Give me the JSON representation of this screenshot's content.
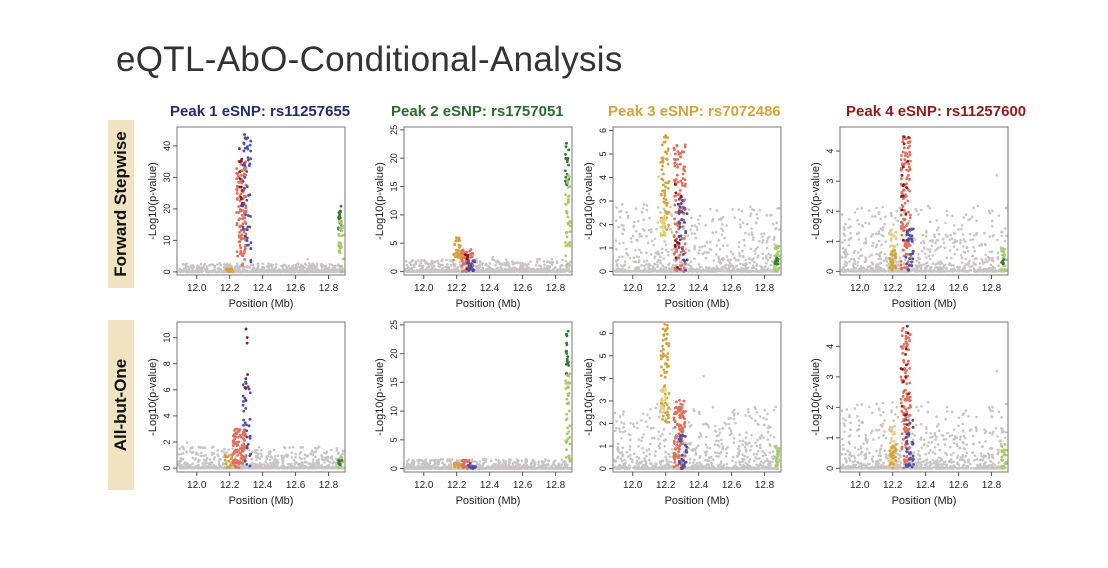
{
  "title": "eQTL-AbO-Conditional-Analysis",
  "row_labels": [
    "Forward Stepwise",
    "All-but-One"
  ],
  "colors": {
    "gray": "#c9c5c5",
    "red": "#e0705e",
    "darkred": "#8e1c1c",
    "blue": "#4b4fae",
    "gold": "#d3a43c",
    "yellow": "#e9d27a",
    "green": "#2f7d32",
    "lightgreen": "#a9cc68",
    "axis": "#555555"
  },
  "chart_data": [
    {
      "type": "scatter",
      "row": "Forward Stepwise",
      "title": "Peak 1 eSNP: rs11257655",
      "title_color": "#252a6e",
      "xlabel": "Position (Mb)",
      "ylabel": "-Log10(p-value)",
      "xlim": [
        11.88,
        12.9
      ],
      "ylim": [
        -1,
        46
      ],
      "xticks": [
        "12.0",
        "12.2",
        "12.4",
        "12.6",
        "12.8"
      ],
      "yticks": [
        0,
        10,
        20,
        30,
        40
      ],
      "noise_max": 2.5,
      "clusters": [
        {
          "x": [
            12.24,
            12.3
          ],
          "y": [
            2,
            36
          ],
          "color": "red",
          "n": 120
        },
        {
          "x": [
            12.25,
            12.28
          ],
          "y": [
            20,
            40
          ],
          "color": "darkred",
          "n": 15
        },
        {
          "x": [
            12.28,
            12.33
          ],
          "y": [
            3,
            44
          ],
          "color": "blue",
          "n": 50
        },
        {
          "x": [
            12.17,
            12.22
          ],
          "y": [
            0,
            1
          ],
          "color": "gold",
          "n": 20
        },
        {
          "x": [
            12.86,
            12.88
          ],
          "y": [
            13,
            23
          ],
          "color": "green",
          "n": 20
        },
        {
          "x": [
            12.86,
            12.89
          ],
          "y": [
            0,
            16
          ],
          "color": "lightgreen",
          "n": 30
        }
      ]
    },
    {
      "type": "scatter",
      "row": "Forward Stepwise",
      "title": "Peak 2 eSNP: rs1757051",
      "title_color": "#2d6a2d",
      "xlabel": "Position (Mb)",
      "ylabel": "-Log10(p-value)",
      "xlim": [
        11.88,
        12.9
      ],
      "ylim": [
        -0.6,
        25.5
      ],
      "xticks": [
        "12.0",
        "12.2",
        "12.4",
        "12.6",
        "12.8"
      ],
      "yticks": [
        0,
        5,
        10,
        15,
        20,
        25
      ],
      "noise_max": 2,
      "clusters": [
        {
          "x": [
            12.18,
            12.23
          ],
          "y": [
            2,
            6
          ],
          "color": "gold",
          "n": 40
        },
        {
          "x": [
            12.23,
            12.3
          ],
          "y": [
            0,
            4
          ],
          "color": "red",
          "n": 50
        },
        {
          "x": [
            12.25,
            12.3
          ],
          "y": [
            0,
            3
          ],
          "color": "darkred",
          "n": 10
        },
        {
          "x": [
            12.27,
            12.32
          ],
          "y": [
            0,
            2
          ],
          "color": "blue",
          "n": 15
        },
        {
          "x": [
            12.86,
            12.88
          ],
          "y": [
            15,
            24
          ],
          "color": "green",
          "n": 20
        },
        {
          "x": [
            12.86,
            12.89
          ],
          "y": [
            1,
            17
          ],
          "color": "lightgreen",
          "n": 40
        }
      ]
    },
    {
      "type": "scatter",
      "row": "Forward Stepwise",
      "title": "Peak 3 eSNP: rs7072486",
      "title_color": "#d3a43c",
      "xlabel": "Position (Mb)",
      "ylabel": "-Log10(p-value)",
      "xlim": [
        11.88,
        12.9
      ],
      "ylim": [
        -0.15,
        6.15
      ],
      "xticks": [
        "12.0",
        "12.2",
        "12.4",
        "12.6",
        "12.8"
      ],
      "yticks": [
        0,
        1,
        2,
        3,
        4,
        5,
        6
      ],
      "noise_max": 2.6,
      "clusters": [
        {
          "x": [
            12.17,
            12.22
          ],
          "y": [
            1.5,
            5.8
          ],
          "color": "gold",
          "n": 60
        },
        {
          "x": [
            12.17,
            12.2
          ],
          "y": [
            1.5,
            2.4
          ],
          "color": "yellow",
          "n": 20
        },
        {
          "x": [
            12.25,
            12.32
          ],
          "y": [
            0,
            5.4
          ],
          "color": "red",
          "n": 120
        },
        {
          "x": [
            12.25,
            12.3
          ],
          "y": [
            0,
            4
          ],
          "color": "darkred",
          "n": 12
        },
        {
          "x": [
            12.28,
            12.33
          ],
          "y": [
            0,
            3.4
          ],
          "color": "blue",
          "n": 30
        },
        {
          "x": [
            12.86,
            12.89
          ],
          "y": [
            0,
            1.1
          ],
          "color": "lightgreen",
          "n": 25
        },
        {
          "x": [
            12.86,
            12.88
          ],
          "y": [
            0.2,
            0.6
          ],
          "color": "green",
          "n": 8
        }
      ]
    },
    {
      "type": "scatter",
      "row": "Forward Stepwise",
      "title": "Peak 4 eSNP: rs11257600",
      "title_color": "#8e1c1c",
      "xlabel": "Position (Mb)",
      "ylabel": "-Log10(p-value)",
      "xlim": [
        11.88,
        12.9
      ],
      "ylim": [
        -0.12,
        4.8
      ],
      "xticks": [
        "12.0",
        "12.2",
        "12.4",
        "12.6",
        "12.8"
      ],
      "yticks": [
        0,
        1,
        2,
        3,
        4
      ],
      "noise_max": 2,
      "clusters": [
        {
          "x": [
            12.18,
            12.22
          ],
          "y": [
            0,
            1.4
          ],
          "color": "yellow",
          "n": 30
        },
        {
          "x": [
            12.18,
            12.22
          ],
          "y": [
            0,
            0.8
          ],
          "color": "gold",
          "n": 25
        },
        {
          "x": [
            12.25,
            12.31
          ],
          "y": [
            0,
            4.6
          ],
          "color": "red",
          "n": 120
        },
        {
          "x": [
            12.25,
            12.3
          ],
          "y": [
            1,
            4.7
          ],
          "color": "darkred",
          "n": 15
        },
        {
          "x": [
            12.28,
            12.33
          ],
          "y": [
            0,
            1.6
          ],
          "color": "blue",
          "n": 30
        },
        {
          "x": [
            12.86,
            12.89
          ],
          "y": [
            0,
            0.8
          ],
          "color": "lightgreen",
          "n": 20
        },
        {
          "x": [
            12.86,
            12.88
          ],
          "y": [
            0.2,
            0.5
          ],
          "color": "green",
          "n": 6
        }
      ]
    },
    {
      "type": "scatter",
      "row": "All-but-One",
      "title": "",
      "xlabel": "Position (Mb)",
      "ylabel": "-Log10(p-value)",
      "xlim": [
        11.88,
        12.9
      ],
      "ylim": [
        -0.3,
        11.2
      ],
      "xticks": [
        "12.0",
        "12.2",
        "12.4",
        "12.6",
        "12.8"
      ],
      "yticks": [
        0,
        2,
        4,
        6,
        8,
        10
      ],
      "noise_max": 1.5,
      "clusters": [
        {
          "x": [
            12.17,
            12.22
          ],
          "y": [
            0,
            1
          ],
          "color": "gold",
          "n": 20
        },
        {
          "x": [
            12.22,
            12.3
          ],
          "y": [
            0,
            3
          ],
          "color": "red",
          "n": 100
        },
        {
          "x": [
            12.28,
            12.33
          ],
          "y": [
            0,
            6.6
          ],
          "color": "blue",
          "n": 30
        },
        {
          "x": [
            12.29,
            12.31
          ],
          "y": [
            4,
            11
          ],
          "color": "darkred",
          "n": 8
        },
        {
          "x": [
            12.86,
            12.89
          ],
          "y": [
            0,
            1
          ],
          "color": "lightgreen",
          "n": 15
        },
        {
          "x": [
            12.86,
            12.88
          ],
          "y": [
            0.2,
            0.6
          ],
          "color": "green",
          "n": 6
        }
      ]
    },
    {
      "type": "scatter",
      "row": "All-but-One",
      "title": "",
      "xlabel": "Position (Mb)",
      "ylabel": "-Log10(p-value)",
      "xlim": [
        11.88,
        12.9
      ],
      "ylim": [
        -0.6,
        25.5
      ],
      "xticks": [
        "12.0",
        "12.2",
        "12.4",
        "12.6",
        "12.8"
      ],
      "yticks": [
        0,
        5,
        10,
        15,
        20,
        25
      ],
      "noise_max": 1.5,
      "clusters": [
        {
          "x": [
            12.18,
            12.23
          ],
          "y": [
            0,
            1
          ],
          "color": "gold",
          "n": 15
        },
        {
          "x": [
            12.23,
            12.3
          ],
          "y": [
            0,
            1.5
          ],
          "color": "red",
          "n": 30
        },
        {
          "x": [
            12.27,
            12.32
          ],
          "y": [
            0,
            1
          ],
          "color": "blue",
          "n": 10
        },
        {
          "x": [
            12.86,
            12.88
          ],
          "y": [
            14,
            24
          ],
          "color": "green",
          "n": 20
        },
        {
          "x": [
            12.86,
            12.89
          ],
          "y": [
            1,
            17
          ],
          "color": "lightgreen",
          "n": 40
        }
      ]
    },
    {
      "type": "scatter",
      "row": "All-but-One",
      "title": "",
      "xlabel": "Position (Mb)",
      "ylabel": "-Log10(p-value)",
      "xlim": [
        11.88,
        12.9
      ],
      "ylim": [
        -0.15,
        6.5
      ],
      "xticks": [
        "12.0",
        "12.2",
        "12.4",
        "12.6",
        "12.8"
      ],
      "yticks": [
        0,
        1,
        2,
        3,
        4,
        5,
        6
      ],
      "noise_max": 2.5,
      "clusters": [
        {
          "x": [
            12.17,
            12.22
          ],
          "y": [
            2,
            6.4
          ],
          "color": "gold",
          "n": 70
        },
        {
          "x": [
            12.17,
            12.2
          ],
          "y": [
            2.4,
            3.6
          ],
          "color": "yellow",
          "n": 20
        },
        {
          "x": [
            12.25,
            12.32
          ],
          "y": [
            0,
            3.1
          ],
          "color": "red",
          "n": 100
        },
        {
          "x": [
            12.28,
            12.33
          ],
          "y": [
            0,
            1.5
          ],
          "color": "blue",
          "n": 25
        },
        {
          "x": [
            12.86,
            12.89
          ],
          "y": [
            0,
            1
          ],
          "color": "lightgreen",
          "n": 20
        }
      ]
    },
    {
      "type": "scatter",
      "row": "All-but-One",
      "title": "",
      "xlabel": "Position (Mb)",
      "ylabel": "-Log10(p-value)",
      "xlim": [
        11.88,
        12.9
      ],
      "ylim": [
        -0.12,
        4.8
      ],
      "xticks": [
        "12.0",
        "12.2",
        "12.4",
        "12.6",
        "12.8"
      ],
      "yticks": [
        0,
        1,
        2,
        3,
        4
      ],
      "noise_max": 2,
      "clusters": [
        {
          "x": [
            12.18,
            12.22
          ],
          "y": [
            0,
            1.4
          ],
          "color": "yellow",
          "n": 30
        },
        {
          "x": [
            12.18,
            12.22
          ],
          "y": [
            0,
            0.8
          ],
          "color": "gold",
          "n": 25
        },
        {
          "x": [
            12.25,
            12.31
          ],
          "y": [
            0,
            4.6
          ],
          "color": "red",
          "n": 120
        },
        {
          "x": [
            12.25,
            12.3
          ],
          "y": [
            1,
            4.7
          ],
          "color": "darkred",
          "n": 15
        },
        {
          "x": [
            12.28,
            12.33
          ],
          "y": [
            0,
            1.6
          ],
          "color": "blue",
          "n": 30
        },
        {
          "x": [
            12.86,
            12.89
          ],
          "y": [
            0,
            0.8
          ],
          "color": "lightgreen",
          "n": 20
        }
      ]
    }
  ]
}
